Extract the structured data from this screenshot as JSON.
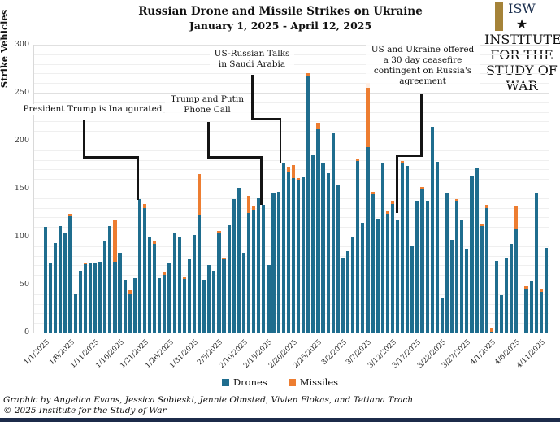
{
  "title": "Russian Drone and Missile Strikes on Ukraine",
  "subtitle": "January 1, 2025 - April 12, 2025",
  "logo": {
    "letters": "ISW",
    "sub1": "INSTITUTE FOR THE",
    "sub2": "STUDY OF WAR",
    "star": "★",
    "navy": "#1b2f4e",
    "gold": "#a58339"
  },
  "legend": {
    "drones_label": "Drones",
    "missiles_label": "Missiles"
  },
  "annotations": [
    {
      "lines": [
        "President Trump is Inaugurated"
      ]
    },
    {
      "lines": [
        "Trump and Putin",
        "Phone Call"
      ]
    },
    {
      "lines": [
        "US-Russian Talks",
        "in Saudi Arabia"
      ]
    },
    {
      "lines": [
        "US and Ukraine offered",
        "a 30 day ceasefire",
        "contingent on Russia's",
        "agreement"
      ]
    }
  ],
  "footer": {
    "credit": "Graphic by Angelica Evans, Jessica Sobieski, Jennie Olmsted, Vivien Flokas, and Tetiana Trach",
    "copyright": "© 2025 Institute for the Study of War"
  },
  "chart_data": {
    "type": "bar",
    "stacked": true,
    "title": "Russian Drone and Missile Strikes on Ukraine",
    "subtitle": "January 1, 2025 - April 12, 2025",
    "ylabel": "Strike Vehicles",
    "ylim": [
      0,
      300
    ],
    "y_ticks": [
      0,
      50,
      100,
      150,
      200,
      250,
      300
    ],
    "grid": "horizontal, every 10 units (light), labels every 50",
    "legend_position": "bottom center",
    "x": [
      "1/1/2025",
      "1/2/2025",
      "1/3/2025",
      "1/4/2025",
      "1/5/2025",
      "1/6/2025",
      "1/7/2025",
      "1/8/2025",
      "1/9/2025",
      "1/10/2025",
      "1/11/2025",
      "1/12/2025",
      "1/13/2025",
      "1/14/2025",
      "1/15/2025",
      "1/16/2025",
      "1/17/2025",
      "1/18/2025",
      "1/19/2025",
      "1/20/2025",
      "1/21/2025",
      "1/22/2025",
      "1/23/2025",
      "1/24/2025",
      "1/25/2025",
      "1/26/2025",
      "1/27/2025",
      "1/28/2025",
      "1/29/2025",
      "1/30/2025",
      "1/31/2025",
      "2/1/2025",
      "2/2/2025",
      "2/3/2025",
      "2/4/2025",
      "2/5/2025",
      "2/6/2025",
      "2/7/2025",
      "2/8/2025",
      "2/9/2025",
      "2/10/2025",
      "2/11/2025",
      "2/12/2025",
      "2/13/2025",
      "2/14/2025",
      "2/15/2025",
      "2/16/2025",
      "2/17/2025",
      "2/18/2025",
      "2/19/2025",
      "2/20/2025",
      "2/21/2025",
      "2/22/2025",
      "2/23/2025",
      "2/24/2025",
      "2/25/2025",
      "2/26/2025",
      "2/27/2025",
      "2/28/2025",
      "3/1/2025",
      "3/2/2025",
      "3/3/2025",
      "3/4/2025",
      "3/5/2025",
      "3/6/2025",
      "3/7/2025",
      "3/8/2025",
      "3/9/2025",
      "3/10/2025",
      "3/11/2025",
      "3/12/2025",
      "3/13/2025",
      "3/14/2025",
      "3/15/2025",
      "3/16/2025",
      "3/17/2025",
      "3/18/2025",
      "3/19/2025",
      "3/20/2025",
      "3/21/2025",
      "3/22/2025",
      "3/23/2025",
      "3/24/2025",
      "3/25/2025",
      "3/26/2025",
      "3/27/2025",
      "3/28/2025",
      "3/29/2025",
      "3/30/2025",
      "3/31/2025",
      "4/1/2025",
      "4/2/2025",
      "4/3/2025",
      "4/4/2025",
      "4/5/2025",
      "4/6/2025",
      "4/7/2025",
      "4/8/2025",
      "4/9/2025",
      "4/10/2025",
      "4/11/2025",
      "4/12/2025"
    ],
    "x_tick_labels": [
      "1/1/2025",
      "1/6/2025",
      "1/11/2025",
      "1/16/2025",
      "1/21/2025",
      "1/26/2025",
      "1/31/2025",
      "2/5/2025",
      "2/10/2025",
      "2/15/2025",
      "2/20/2025",
      "2/25/2025",
      "3/2/2025",
      "3/7/2025",
      "3/12/2025",
      "3/17/2025",
      "3/22/2025",
      "3/27/2025",
      "4/1/2025",
      "4/6/2025",
      "4/11/2025"
    ],
    "tick_every": 5,
    "series": [
      {
        "name": "Drones",
        "color": "#1f6d8e",
        "values": [
          110,
          72,
          93,
          111,
          103,
          121,
          40,
          64,
          71,
          72,
          72,
          74,
          95,
          111,
          74,
          83,
          55,
          41,
          57,
          139,
          130,
          99,
          92,
          57,
          60,
          72,
          104,
          100,
          56,
          76,
          102,
          123,
          55,
          70,
          64,
          104,
          76,
          112,
          139,
          151,
          83,
          125,
          128,
          140,
          133,
          70,
          146,
          147,
          176,
          168,
          161,
          159,
          162,
          267,
          185,
          212,
          176,
          166,
          208,
          154,
          78,
          85,
          99,
          179,
          114,
          193,
          145,
          119,
          176,
          124,
          134,
          118,
          177,
          174,
          91,
          137,
          149,
          137,
          214,
          178,
          36,
          146,
          97,
          137,
          117,
          87,
          163,
          171,
          111,
          130,
          1,
          75,
          39,
          78,
          92,
          108,
          0,
          46,
          54,
          146,
          42,
          88
        ]
      },
      {
        "name": "Missiles",
        "color": "#ed7d31",
        "values": [
          0,
          0,
          0,
          0,
          0,
          3,
          0,
          0,
          2,
          0,
          0,
          0,
          0,
          0,
          43,
          0,
          0,
          3,
          0,
          0,
          4,
          0,
          3,
          0,
          3,
          0,
          0,
          0,
          2,
          0,
          0,
          42,
          0,
          0,
          0,
          2,
          2,
          0,
          0,
          0,
          0,
          17,
          4,
          0,
          0,
          0,
          0,
          0,
          0,
          5,
          14,
          2,
          0,
          3,
          0,
          7,
          0,
          0,
          0,
          0,
          0,
          0,
          0,
          2,
          0,
          67,
          2,
          0,
          0,
          2,
          3,
          0,
          2,
          0,
          0,
          0,
          3,
          0,
          0,
          0,
          0,
          0,
          0,
          2,
          0,
          0,
          0,
          0,
          2,
          3,
          3,
          0,
          0,
          0,
          0,
          24,
          0,
          2,
          0,
          0,
          3,
          0
        ]
      }
    ]
  }
}
